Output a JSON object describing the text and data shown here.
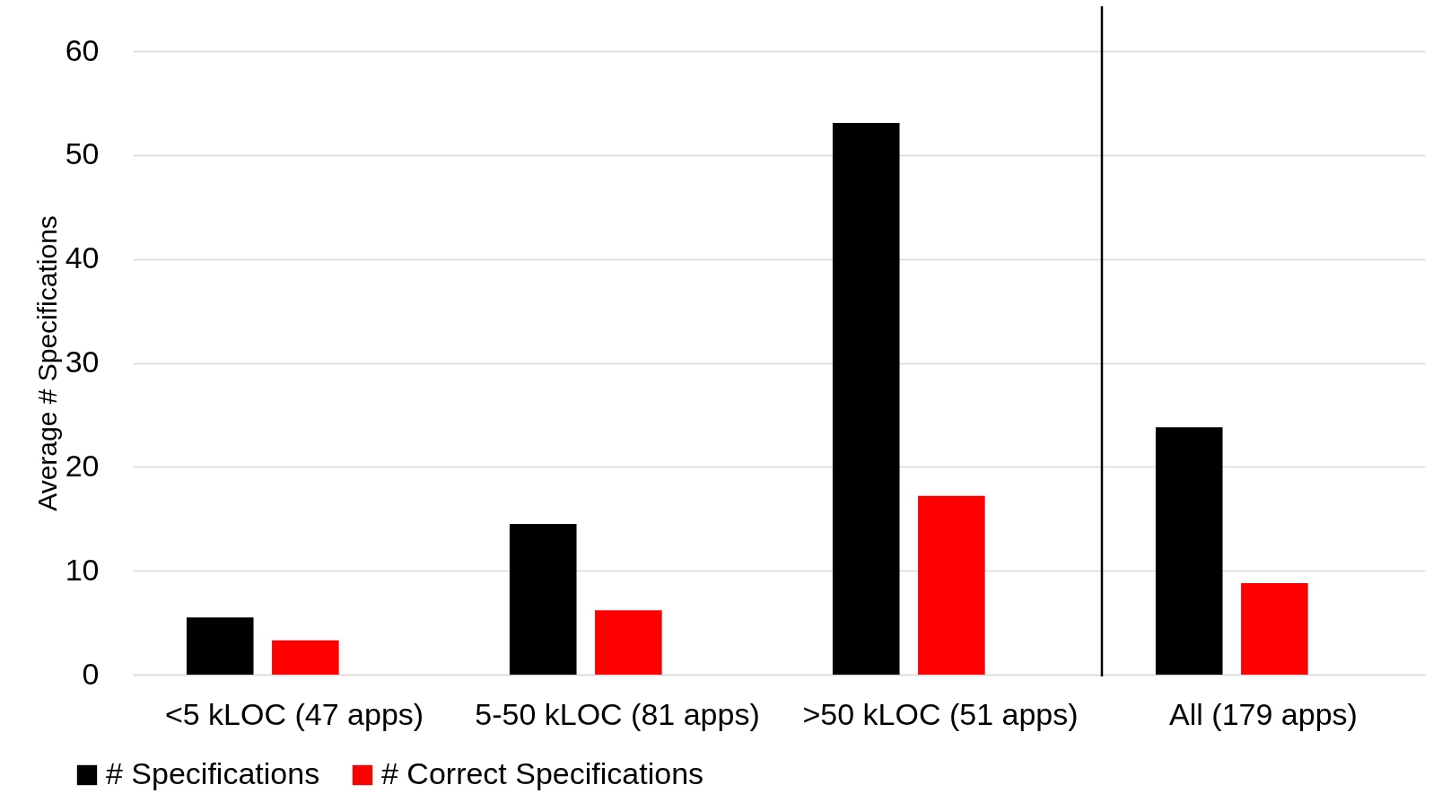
{
  "chart_data": {
    "type": "bar",
    "ylabel": "Average # Specifications",
    "categories": [
      "<5 kLOC (47 apps)",
      "5-50 kLOC (81 apps)",
      ">50 kLOC (51 apps)",
      "All (179 apps)"
    ],
    "series": [
      {
        "name": "# Specifications",
        "color": "#000000",
        "values": [
          5.5,
          14.5,
          53.1,
          23.8
        ]
      },
      {
        "name": "# Correct Specifications",
        "color": "#ff0000",
        "values": [
          3.3,
          6.2,
          17.2,
          8.8
        ]
      }
    ],
    "ylim": [
      0,
      60
    ],
    "yticks": [
      0,
      10,
      20,
      30,
      40,
      50,
      60
    ],
    "grid": "y",
    "legend": "bottom left",
    "ref_lines": [
      {
        "axis": "x",
        "value": "All (179 apps)",
        "color": "#000000"
      }
    ]
  }
}
